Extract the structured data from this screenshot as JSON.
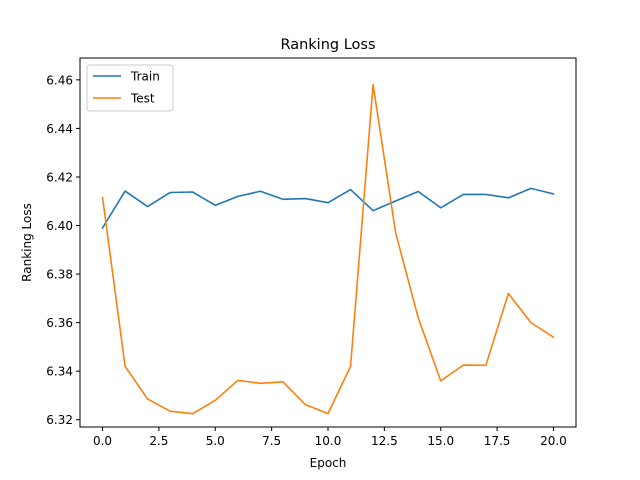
{
  "chart_data": {
    "type": "line",
    "title": "Ranking Loss",
    "xlabel": "Epoch",
    "ylabel": "Ranking Loss",
    "xlim": [
      -1,
      21
    ],
    "ylim": [
      6.317,
      6.469
    ],
    "xticks": [
      0.0,
      2.5,
      5.0,
      7.5,
      10.0,
      12.5,
      15.0,
      17.5,
      20.0
    ],
    "xtick_labels": [
      "0.0",
      "2.5",
      "5.0",
      "7.5",
      "10.0",
      "12.5",
      "15.0",
      "17.5",
      "20.0"
    ],
    "yticks": [
      6.32,
      6.34,
      6.36,
      6.38,
      6.4,
      6.42,
      6.44,
      6.46
    ],
    "ytick_labels": [
      "6.32",
      "6.34",
      "6.36",
      "6.38",
      "6.40",
      "6.42",
      "6.44",
      "6.46"
    ],
    "grid": false,
    "legend_position": "top-left",
    "x": [
      0,
      1,
      2,
      3,
      4,
      5,
      6,
      7,
      8,
      9,
      10,
      11,
      12,
      13,
      14,
      15,
      16,
      17,
      18,
      19,
      20
    ],
    "series": [
      {
        "name": "Train",
        "color": "#1f77b4",
        "values": [
          6.399,
          6.4142,
          6.4078,
          6.4136,
          6.4138,
          6.4083,
          6.412,
          6.4141,
          6.4108,
          6.4111,
          6.4094,
          6.4148,
          6.4061,
          6.4101,
          6.414,
          6.4073,
          6.4128,
          6.4128,
          6.4114,
          6.4153,
          6.413
        ]
      },
      {
        "name": "Test",
        "color": "#ff7f0e",
        "values": [
          6.4115,
          6.342,
          6.3285,
          6.3235,
          6.3225,
          6.328,
          6.3362,
          6.335,
          6.3356,
          6.3262,
          6.3225,
          6.342,
          6.458,
          6.397,
          6.362,
          6.336,
          6.3425,
          6.3424,
          6.372,
          6.36,
          6.354
        ]
      }
    ]
  }
}
